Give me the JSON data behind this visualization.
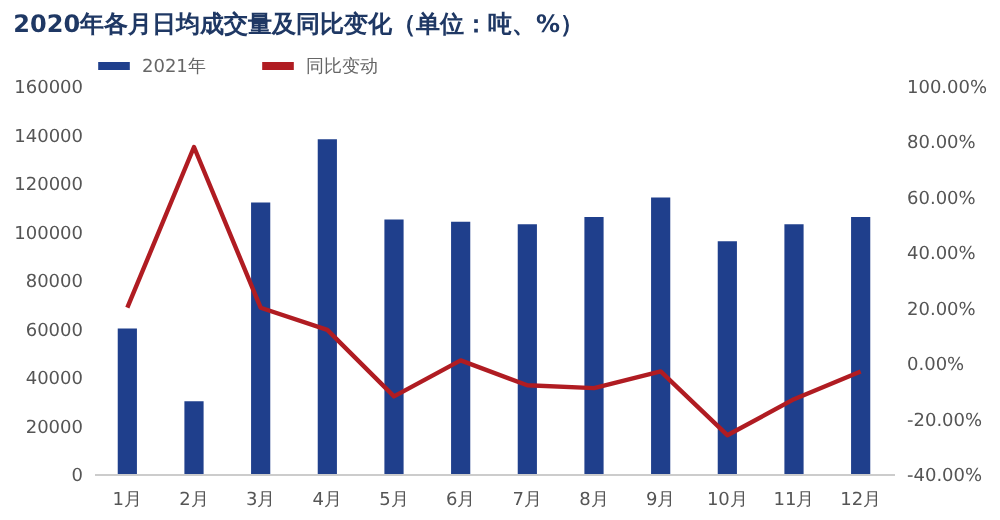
{
  "chart_data": {
    "type": "bar",
    "title": "2020年各月日均成交量及同比变化（单位：吨、%）",
    "categories": [
      "1月",
      "2月",
      "3月",
      "4月",
      "5月",
      "6月",
      "7月",
      "8月",
      "9月",
      "10月",
      "11月",
      "12月"
    ],
    "series": [
      {
        "name": "2021年",
        "color": "#1f3f8c",
        "values": [
          60000,
          30000,
          112000,
          138000,
          105000,
          104000,
          103000,
          106000,
          114000,
          96000,
          103000,
          106000
        ]
      },
      {
        "name": "同比变动",
        "type": "line",
        "axis": "y2",
        "color": "#b01c22",
        "values": [
          20,
          78,
          20,
          12,
          -12,
          1,
          -8,
          -9,
          -3,
          -26,
          -13,
          -3
        ]
      }
    ],
    "ylim": [
      0,
      160000
    ],
    "yticks": [
      0,
      20000,
      40000,
      60000,
      80000,
      100000,
      120000,
      140000,
      160000
    ],
    "y2lim": [
      -40,
      100
    ],
    "y2ticks": [
      {
        "value": -40,
        "label": "-40.00%"
      },
      {
        "value": -20,
        "label": "-20.00%"
      },
      {
        "value": 0,
        "label": "0.00%"
      },
      {
        "value": 20,
        "label": "20.00%"
      },
      {
        "value": 40,
        "label": "40.00%"
      },
      {
        "value": 60,
        "label": "60.00%"
      },
      {
        "value": 80,
        "label": "80.00%"
      },
      {
        "value": 100,
        "label": "100.00%"
      }
    ],
    "legend": "top",
    "grid": false
  }
}
